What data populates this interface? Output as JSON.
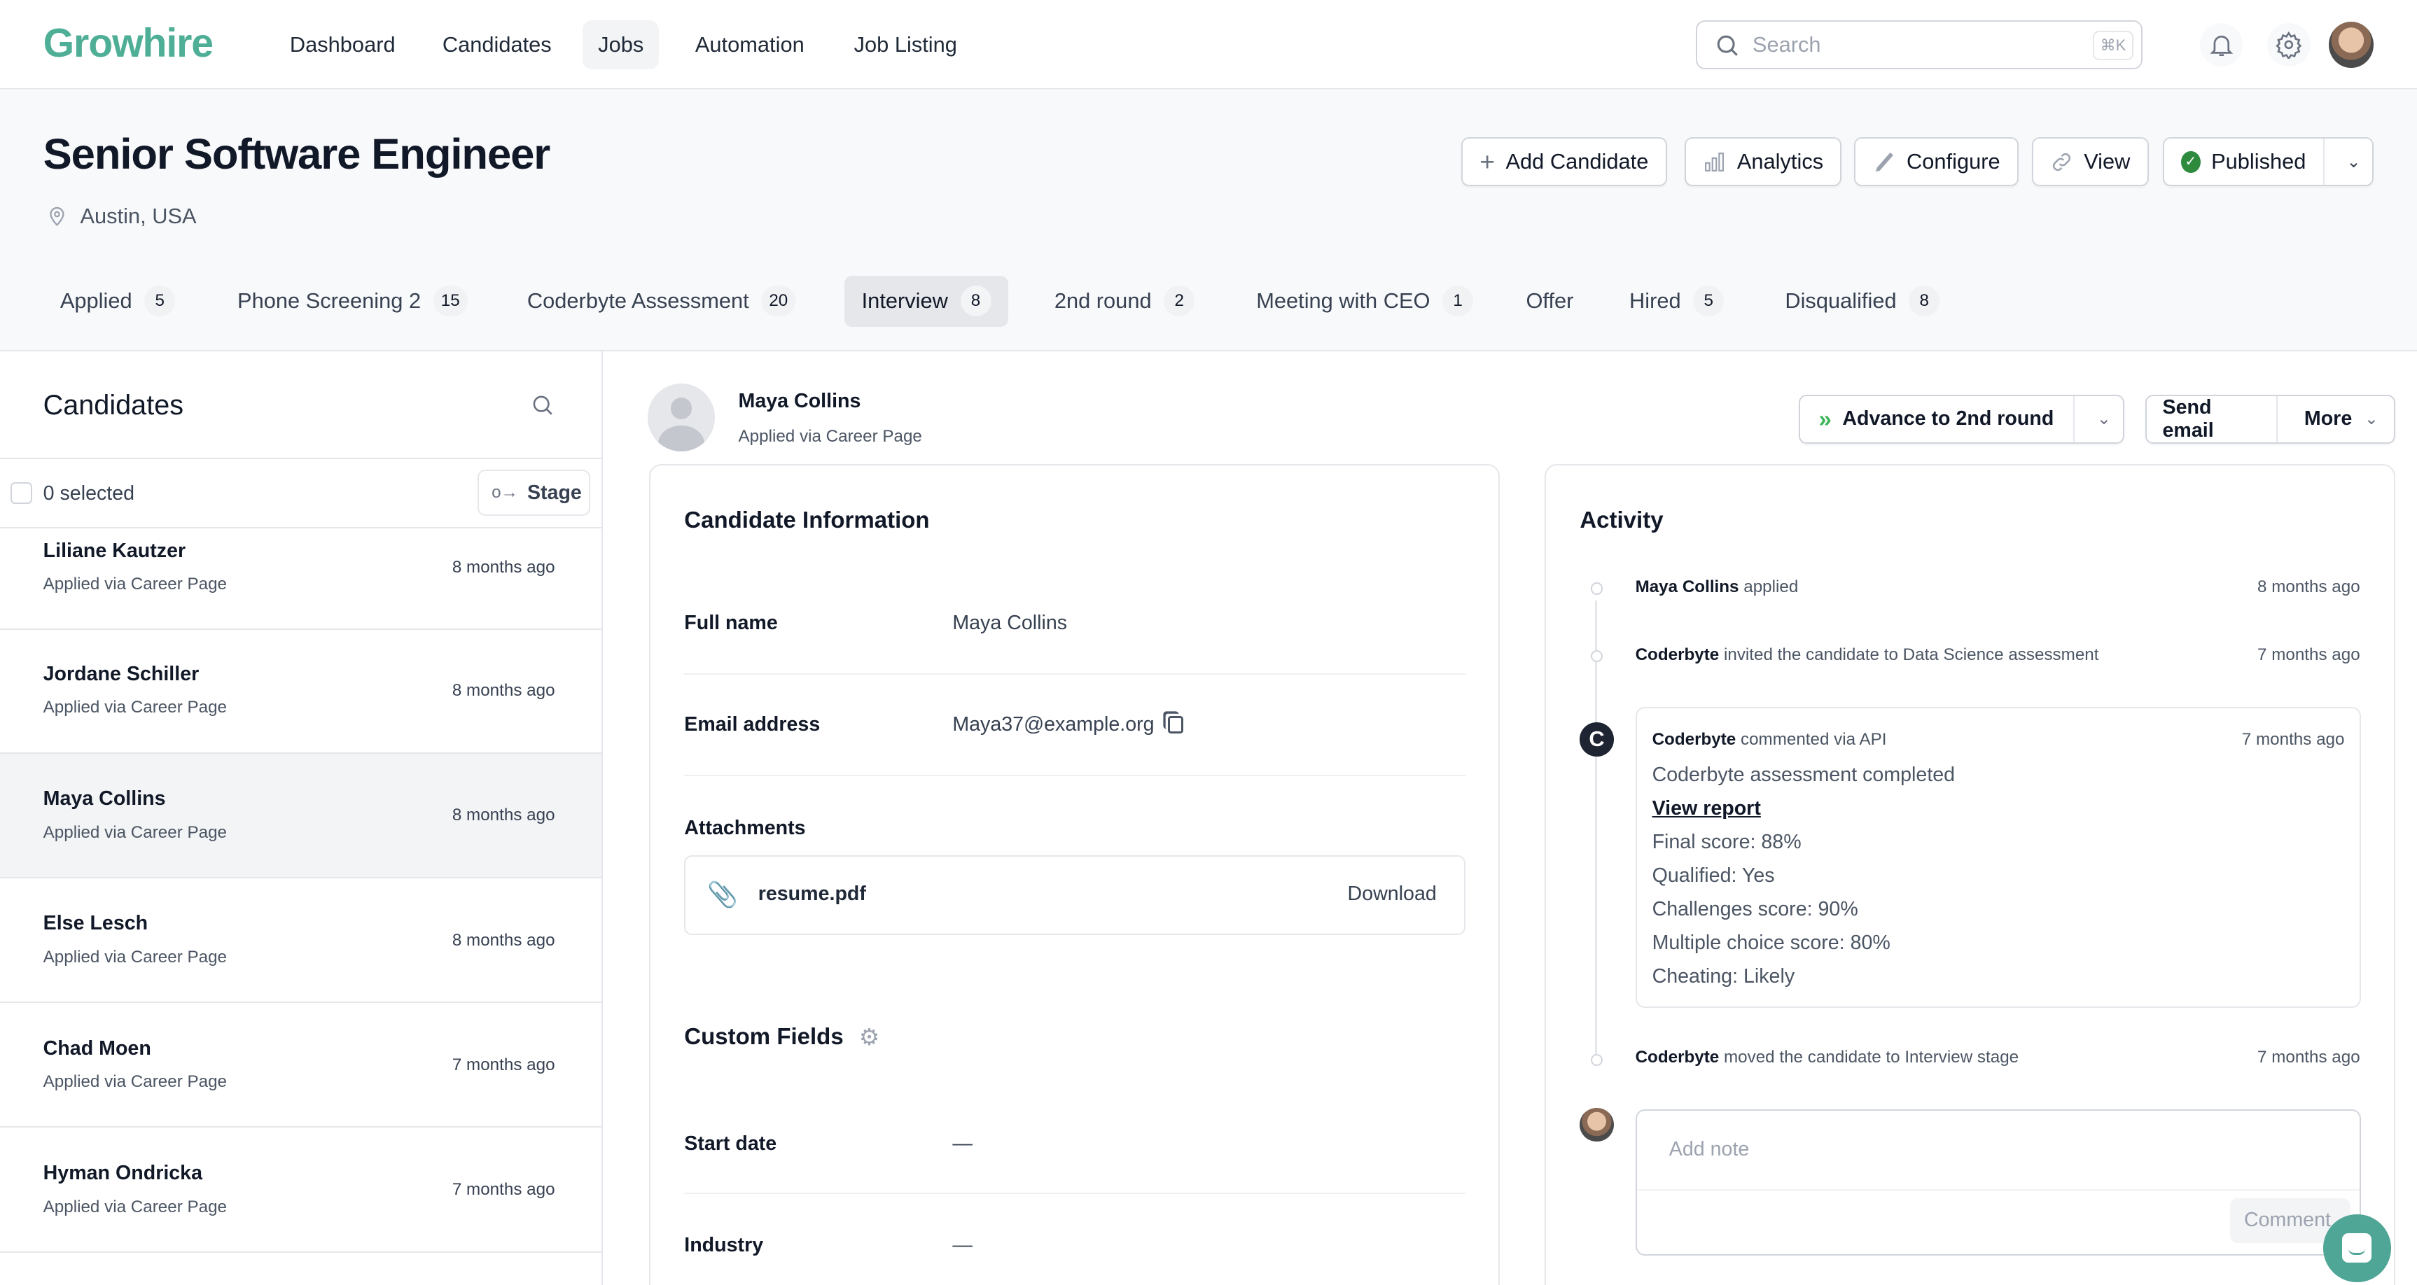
{
  "app": {
    "logo": "Growhire",
    "accent": "#4fae96"
  },
  "nav": {
    "items": [
      "Dashboard",
      "Candidates",
      "Jobs",
      "Automation",
      "Job Listing"
    ],
    "active": "Jobs"
  },
  "search": {
    "placeholder": "Search",
    "shortcut": "⌘K"
  },
  "job": {
    "title": "Senior Software Engineer",
    "location": "Austin, USA",
    "actions": {
      "add_candidate": "Add Candidate",
      "analytics": "Analytics",
      "configure": "Configure",
      "view": "View",
      "status": "Published"
    }
  },
  "stages": [
    {
      "label": "Applied",
      "count": "5"
    },
    {
      "label": "Phone Screening 2",
      "count": "15"
    },
    {
      "label": "Coderbyte Assessment",
      "count": "20"
    },
    {
      "label": "Interview",
      "count": "8",
      "active": true
    },
    {
      "label": "2nd round",
      "count": "2"
    },
    {
      "label": "Meeting with CEO",
      "count": "1"
    },
    {
      "label": "Offer",
      "count": ""
    },
    {
      "label": "Hired",
      "count": "5"
    },
    {
      "label": "Disqualified",
      "count": "8"
    }
  ],
  "candidates_panel": {
    "title": "Candidates",
    "selected": "0 selected",
    "stage_button": "Stage",
    "items": [
      {
        "name": "Liliane Kautzer",
        "source": "Applied via Career Page",
        "time": "8 months ago"
      },
      {
        "name": "Jordane Schiller",
        "source": "Applied via Career Page",
        "time": "8 months ago"
      },
      {
        "name": "Maya Collins",
        "source": "Applied via Career Page",
        "time": "8 months ago",
        "selected": true
      },
      {
        "name": "Else Lesch",
        "source": "Applied via Career Page",
        "time": "8 months ago"
      },
      {
        "name": "Chad Moen",
        "source": "Applied via Career Page",
        "time": "7 months ago"
      },
      {
        "name": "Hyman Ondricka",
        "source": "Applied via Career Page",
        "time": "7 months ago"
      }
    ]
  },
  "candidate": {
    "name": "Maya Collins",
    "source": "Applied via Career Page",
    "advance": "Advance to 2nd round",
    "send_email": "Send email",
    "more": "More"
  },
  "info": {
    "title": "Candidate Information",
    "full_name_label": "Full name",
    "full_name": "Maya Collins",
    "email_label": "Email address",
    "email": "Maya37@example.org",
    "attachments_label": "Attachments",
    "file": "resume.pdf",
    "download": "Download",
    "custom_fields": "Custom Fields",
    "start_date_label": "Start date",
    "start_date": "—",
    "industry_label": "Industry",
    "industry": "—"
  },
  "activity": {
    "title": "Activity",
    "events": [
      {
        "actor": "Maya Collins",
        "text": " applied",
        "time": "8 months ago"
      },
      {
        "actor": "Coderbyte",
        "text": " invited the candidate to Data Science assessment",
        "time": "7 months ago"
      }
    ],
    "comment": {
      "actor": "Coderbyte",
      "text": " commented via API",
      "time": "7 months ago",
      "heading": "Coderbyte assessment completed",
      "link": "View report",
      "lines": [
        "Final score: 88%",
        "Qualified: Yes",
        "Challenges score: 90%",
        "Multiple choice score: 80%",
        "Cheating: Likely"
      ]
    },
    "moved": {
      "actor": "Coderbyte",
      "text": " moved the candidate to Interview stage",
      "time": "7 months ago"
    },
    "note_placeholder": "Add note",
    "comment_button": "Comment"
  }
}
